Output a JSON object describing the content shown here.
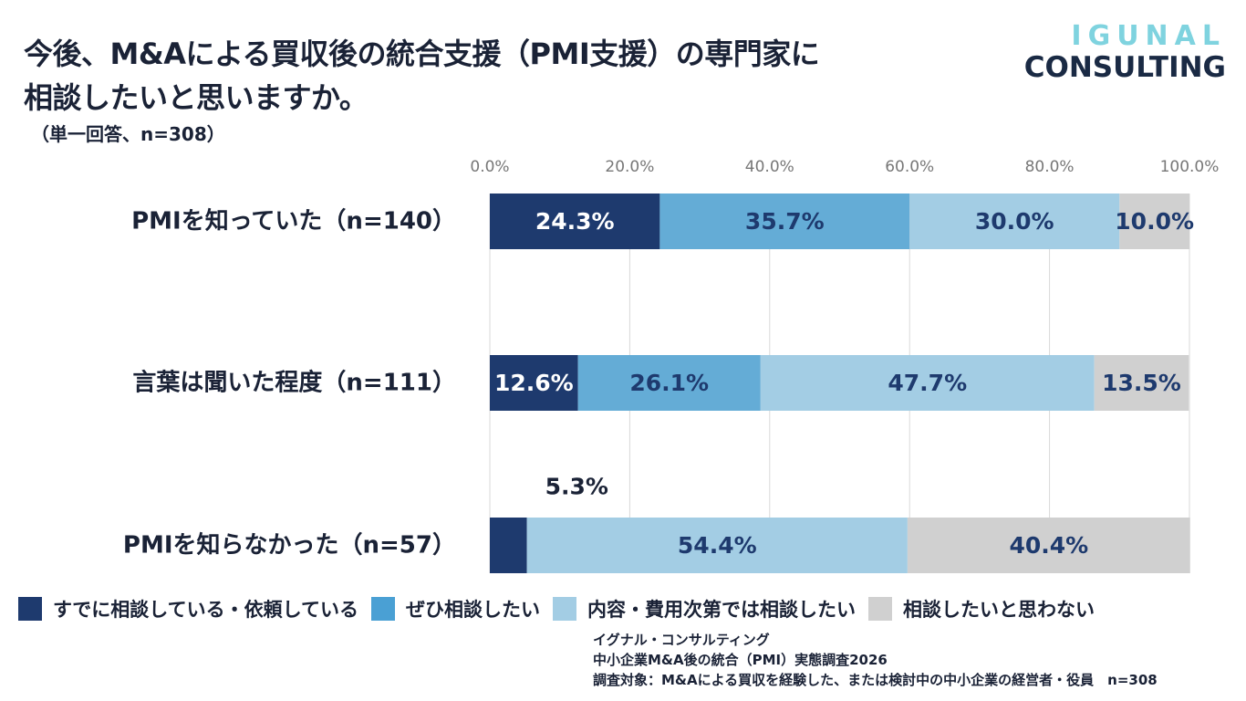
{
  "header": {
    "title_line1": "今後、M&Aによる買収後の統合支援（PMI支援）の専門家に",
    "title_line2": "相談したいと思いますか。",
    "subtitle": "（単一回答、n=308）"
  },
  "brand": {
    "line1": "IGUNAL",
    "line2": "CONSULTING"
  },
  "source": {
    "line1": "イグナル・コンサルティング",
    "line2": "中小企業M&A後の統合（PMI）実態調査2026",
    "line3": "調査対象：M&Aによる買収を経験した、または検討中の中小企業の経営者・役員　n=308"
  },
  "chart_data": {
    "type": "bar",
    "orientation": "horizontal",
    "stacked": true,
    "categories": [
      "PMIを知っていた（n=140）",
      "言葉は聞いた程度（n=111）",
      "PMIを知らなかった（n=57）"
    ],
    "series": [
      {
        "name": "すでに相談している・依頼している",
        "color": "#1e3a6e",
        "label_color": "#ffffff",
        "values": [
          24.3,
          12.6,
          5.3
        ],
        "labels": [
          "24.3%",
          "12.6%",
          "5.3%"
        ]
      },
      {
        "name": "ぜひ相談したい",
        "color": "#64acd6",
        "label_color": "#1e3a6e",
        "values": [
          35.7,
          26.1,
          0
        ],
        "labels": [
          "35.7%",
          "26.1%",
          ""
        ]
      },
      {
        "name": "内容・費用次第では相談したい",
        "color": "#a3cde4",
        "label_color": "#1e3a6e",
        "values": [
          30.0,
          47.7,
          54.4
        ],
        "labels": [
          "30.0%",
          "47.7%",
          "54.4%"
        ]
      },
      {
        "name": "相談したいと思わない",
        "color": "#d0d0d0",
        "label_color": "#1e3a6e",
        "values": [
          10.0,
          13.5,
          40.4
        ],
        "labels": [
          "10.0%",
          "13.5%",
          "40.4%"
        ]
      }
    ],
    "x_ticks": [
      "0.0%",
      "20.0%",
      "40.0%",
      "60.0%",
      "80.0%",
      "100.0%"
    ],
    "xlim": [
      0,
      100
    ],
    "grid": "vertical",
    "legend_position": "bottom",
    "outside_label_category_index": 2,
    "outside_label_series_index": 0
  }
}
